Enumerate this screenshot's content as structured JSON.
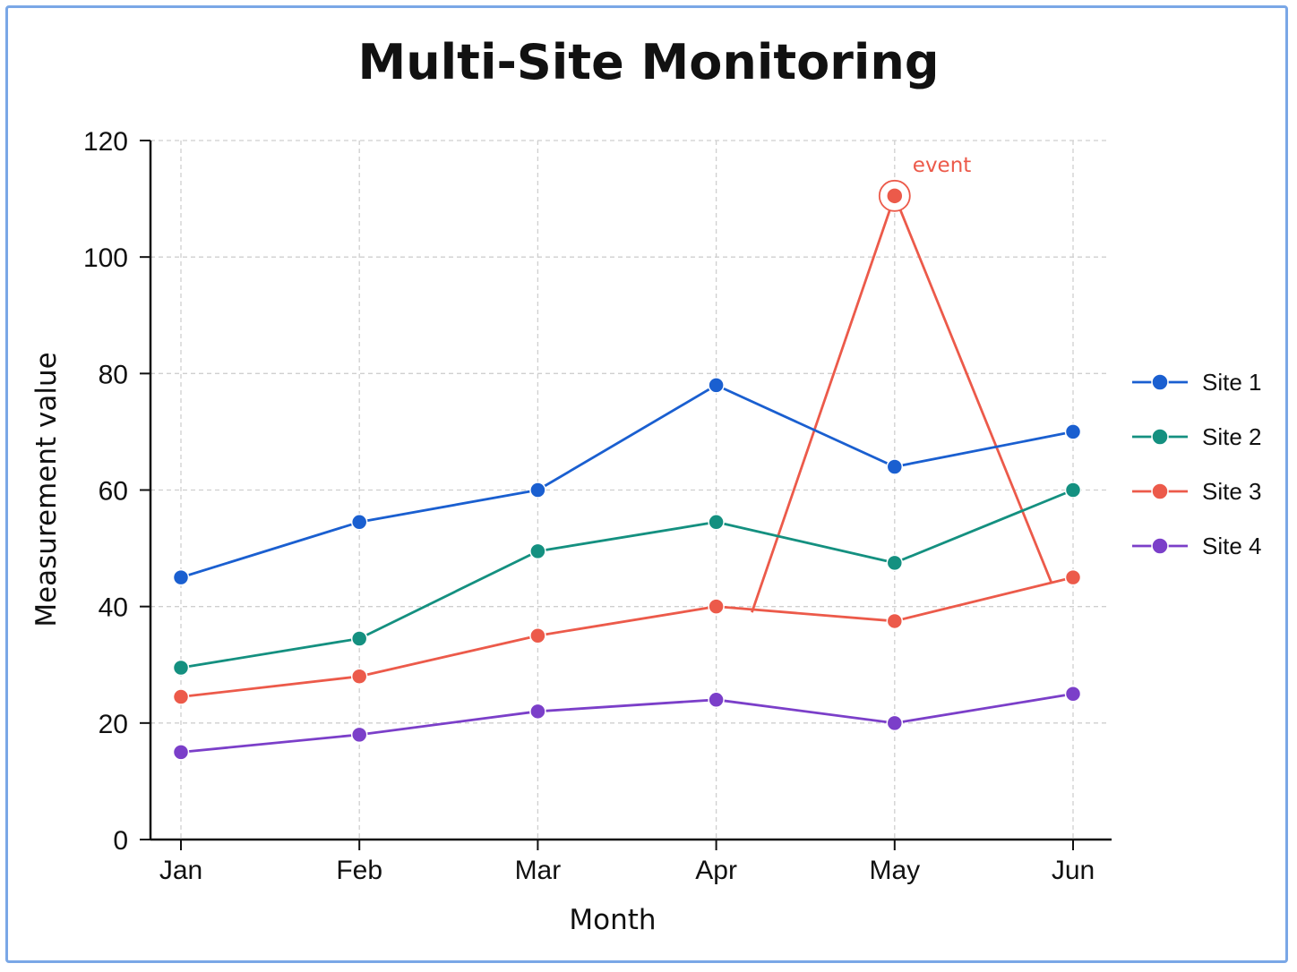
{
  "chart_data": {
    "type": "line",
    "title": "Multi-Site Monitoring",
    "xlabel": "Month",
    "ylabel": "Measurement value",
    "categories": [
      "Jan",
      "Feb",
      "Mar",
      "Apr",
      "May",
      "Jun"
    ],
    "ylim": [
      0,
      120
    ],
    "yticks": [
      0,
      20,
      40,
      60,
      80,
      100,
      120
    ],
    "grid": true,
    "legend_position": "right",
    "series": [
      {
        "name": "Site 1",
        "color": "#1a5fd0",
        "values": [
          45,
          54.5,
          60,
          78,
          64,
          70
        ]
      },
      {
        "name": "Site 2",
        "color": "#149080",
        "values": [
          29.5,
          34.5,
          49.5,
          54.5,
          47.5,
          60
        ]
      },
      {
        "name": "Site 3",
        "color": "#ec5a4a",
        "values": [
          24.5,
          28,
          35,
          40,
          37.5,
          45
        ]
      },
      {
        "name": "Site 4",
        "color": "#7b3fc9",
        "values": [
          15,
          18,
          22,
          24,
          20,
          25
        ]
      }
    ],
    "annotation": {
      "text": "event",
      "series": "Site 3",
      "color": "#ec5a4a",
      "peak": {
        "x": "May",
        "y": 110.5
      },
      "spike_start": {
        "x": 3.2,
        "y": 39
      },
      "spike_end": {
        "x": 4.88,
        "y": 44
      }
    }
  }
}
